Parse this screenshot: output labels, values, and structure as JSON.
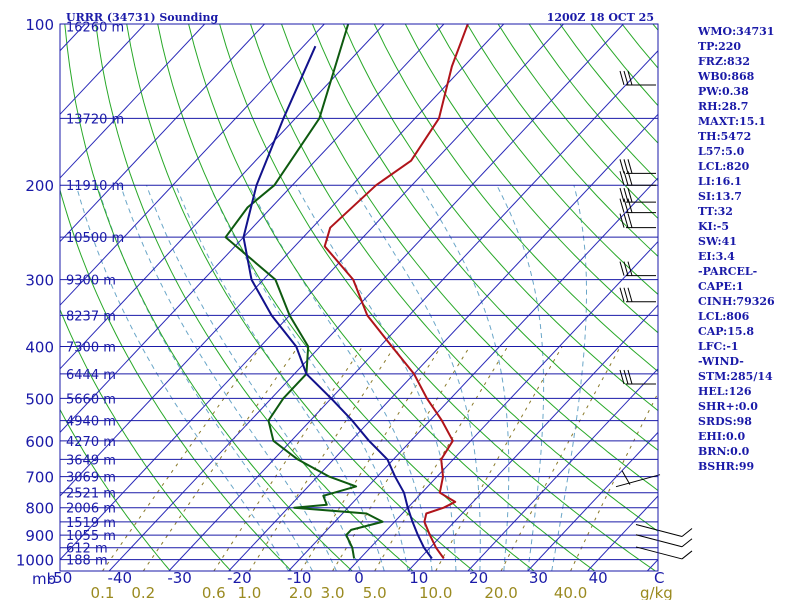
{
  "chart_data": {
    "type": "line",
    "title": "URRR (34731) Sounding",
    "valid_time": "1200Z 18 OCT 25",
    "pressure_levels": [
      "100",
      "200",
      "300",
      "400",
      "500",
      "600",
      "700",
      "800",
      "900",
      "1000"
    ],
    "pressure_unit_label": "mb",
    "temperature_ticks": [
      "-50",
      "-40",
      "-30",
      "-20",
      "-10",
      "0",
      "10",
      "20",
      "30",
      "40"
    ],
    "temperature_unit_label": "C",
    "mixing_ratio_ticks": [
      "0.1",
      "0.2",
      "0.6",
      "1.0",
      "2.0",
      "3.0",
      "5.0",
      "10.0",
      "20.0",
      "40.0"
    ],
    "mixing_ratio_unit_label": "g/kg",
    "height_labels": [
      {
        "p": 101,
        "text": "16260 m"
      },
      {
        "p": 150,
        "text": "13720 m"
      },
      {
        "p": 200,
        "text": "11910 m"
      },
      {
        "p": 250,
        "text": "10500 m"
      },
      {
        "p": 300,
        "text": "9300 m"
      },
      {
        "p": 350,
        "text": "8237 m"
      },
      {
        "p": 400,
        "text": "7300 m"
      },
      {
        "p": 450,
        "text": "6444 m"
      },
      {
        "p": 500,
        "text": "5660 m"
      },
      {
        "p": 550,
        "text": "4940 m"
      },
      {
        "p": 600,
        "text": "4270 m"
      },
      {
        "p": 650,
        "text": "3649 m"
      },
      {
        "p": 700,
        "text": "3069 m"
      },
      {
        "p": 750,
        "text": "2521 m"
      },
      {
        "p": 800,
        "text": "2006 m"
      },
      {
        "p": 850,
        "text": "1519 m"
      },
      {
        "p": 900,
        "text": "1055 m"
      },
      {
        "p": 950,
        "text": "612 m"
      },
      {
        "p": 1000,
        "text": "188 m"
      }
    ],
    "series": [
      {
        "name": "temperature",
        "color": "#b0141a",
        "points": [
          [
            100,
            -66
          ],
          [
            120,
            -62
          ],
          [
            150,
            -56
          ],
          [
            180,
            -54
          ],
          [
            200,
            -56
          ],
          [
            240,
            -57
          ],
          [
            260,
            -55
          ],
          [
            300,
            -45
          ],
          [
            350,
            -37
          ],
          [
            400,
            -28
          ],
          [
            450,
            -20
          ],
          [
            500,
            -14
          ],
          [
            550,
            -8
          ],
          [
            600,
            -3
          ],
          [
            650,
            -2
          ],
          [
            700,
            1
          ],
          [
            750,
            3
          ],
          [
            780,
            7
          ],
          [
            800,
            6
          ],
          [
            820,
            4
          ],
          [
            850,
            5
          ],
          [
            900,
            8
          ],
          [
            950,
            11
          ],
          [
            995,
            14
          ]
        ]
      },
      {
        "name": "dewpoint",
        "color": "#0e5a10",
        "points": [
          [
            100,
            -86
          ],
          [
            150,
            -76
          ],
          [
            200,
            -73
          ],
          [
            220,
            -74
          ],
          [
            250,
            -73
          ],
          [
            300,
            -58
          ],
          [
            350,
            -50
          ],
          [
            400,
            -42
          ],
          [
            450,
            -38
          ],
          [
            500,
            -38
          ],
          [
            550,
            -37
          ],
          [
            600,
            -33
          ],
          [
            650,
            -26
          ],
          [
            700,
            -18
          ],
          [
            730,
            -12
          ],
          [
            760,
            -16
          ],
          [
            790,
            -14
          ],
          [
            800,
            -19
          ],
          [
            820,
            -6
          ],
          [
            850,
            -2
          ],
          [
            880,
            -6
          ],
          [
            900,
            -6
          ],
          [
            950,
            -3
          ],
          [
            995,
            -1
          ]
        ]
      },
      {
        "name": "parcel",
        "color": "#12128c",
        "points": [
          [
            110,
            -88
          ],
          [
            150,
            -82
          ],
          [
            200,
            -76
          ],
          [
            250,
            -70
          ],
          [
            300,
            -62
          ],
          [
            350,
            -53
          ],
          [
            400,
            -44
          ],
          [
            450,
            -38
          ],
          [
            500,
            -30
          ],
          [
            550,
            -23
          ],
          [
            600,
            -17
          ],
          [
            650,
            -11
          ],
          [
            700,
            -7
          ],
          [
            750,
            -3
          ],
          [
            800,
            0
          ],
          [
            850,
            3
          ],
          [
            900,
            6
          ],
          [
            950,
            9
          ],
          [
            995,
            12
          ]
        ]
      }
    ],
    "wind_barbs_levels": [
      130,
      190,
      200,
      215,
      225,
      240,
      295,
      330,
      470,
      700,
      890,
      930,
      980
    ],
    "xlim": [
      -50,
      50
    ],
    "ylim": [
      100,
      1050
    ],
    "grid": true
  },
  "indices_panel": [
    "WMO:34731",
    "TP:220",
    "FRZ:832",
    "WB0:868",
    "PW:0.38",
    "RH:28.7",
    "MAXT:15.1",
    "TH:5472",
    "L57:5.0",
    "LCL:820",
    "LI:16.1",
    "SI:13.7",
    "TT:32",
    "KI:-5",
    "SW:41",
    "EI:3.4",
    "-PARCEL-",
    "CAPE:1",
    "CINH:79326",
    "LCL:806",
    "CAP:15.8",
    "LFC:-1",
    "-WIND-",
    "STM:285/14",
    "HEL:126",
    "SHR+:0.0",
    "SRDS:98",
    "EHI:0.0",
    "BRN:0.0",
    "BSHR:99"
  ],
  "colors": {
    "axis": "#1a1aa8",
    "isotherm": "#2a2ab8",
    "dry_adiabat": "#28a828",
    "moist_adiabat": "#6aa6c8",
    "mixing_ratio": "#8a7a2a",
    "mixing_ratio_label": "#9a8a20"
  }
}
